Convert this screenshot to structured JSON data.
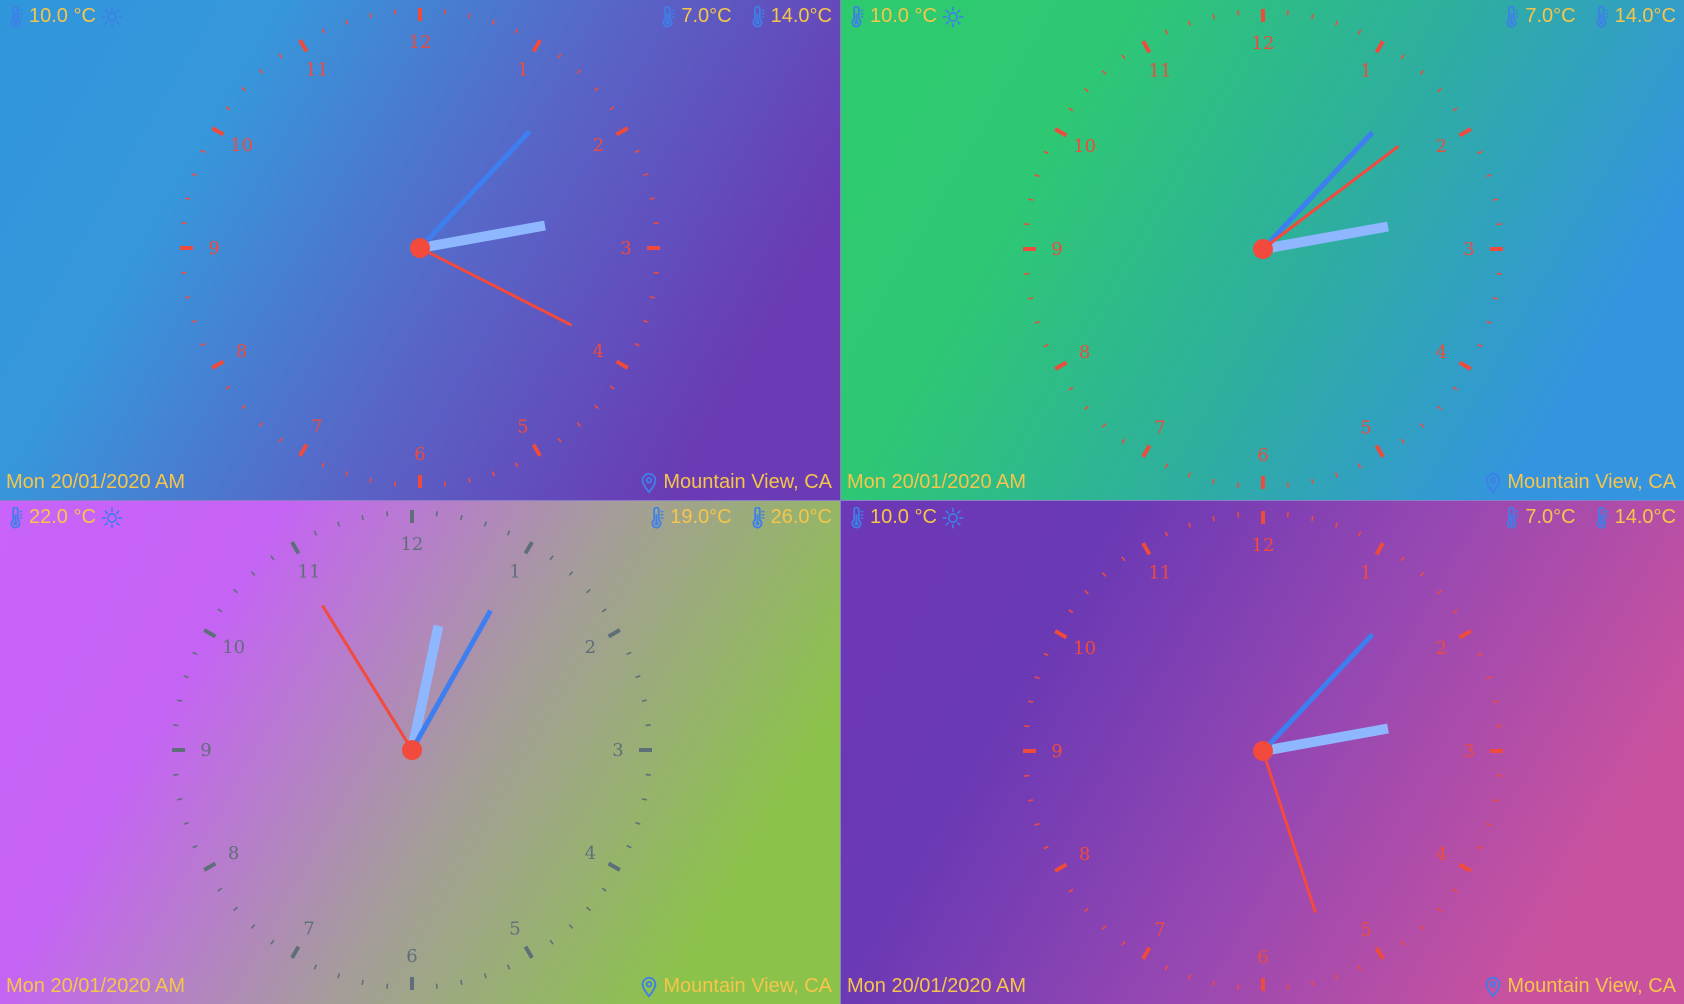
{
  "colors": {
    "text_yellow": "#f6c54a",
    "icon_blue": "#3e7fe8",
    "hand_blue": "#3d7ef0",
    "hand_light": "#8fb7ff",
    "hand_red": "#f24a3c",
    "tick_red": "#ef4b3d",
    "tick_gray": "#5e6f7a"
  },
  "panels": [
    {
      "id": "top-left",
      "gradient": [
        "#3096dc",
        "#3797db",
        "#5865c7",
        "#6a3bb4"
      ],
      "tick_color": "#ef4b3d",
      "current_temp": "10.0 °C",
      "min_temp": "7.0°C",
      "max_temp": "14.0°C",
      "date": "Mon 20/01/2020 AM",
      "location": "Mountain View, CA",
      "numerals": [
        "12",
        "1",
        "2",
        "3",
        "4",
        "5",
        "6",
        "7",
        "8",
        "9",
        "10",
        "11"
      ],
      "time": {
        "hour": 2.66,
        "minute": 7.2,
        "second": 19.5
      }
    },
    {
      "id": "top-right",
      "gradient": [
        "#2ecb6e",
        "#2ec873",
        "#2eae9f",
        "#3494e0"
      ],
      "tick_color": "#ef4b3d",
      "current_temp": "10.0 °C",
      "min_temp": "7.0°C",
      "max_temp": "14.0°C",
      "date": "Mon 20/01/2020 AM",
      "location": "Mountain View, CA",
      "numerals": [
        "12",
        "1",
        "2",
        "3",
        "4",
        "5",
        "6",
        "7",
        "8",
        "9",
        "10",
        "11"
      ],
      "time": {
        "hour": 2.66,
        "minute": 7.2,
        "second": 8.8
      }
    },
    {
      "id": "bottom-left",
      "gradient": [
        "#c963fb",
        "#c563f5",
        "#a59d9a",
        "#8bc34a"
      ],
      "tick_color": "#5e6f7a",
      "current_temp": "22.0 °C",
      "min_temp": "19.0°C",
      "max_temp": "26.0°C",
      "date": "Mon 20/01/2020 AM",
      "location": "Mountain View, CA",
      "numerals": [
        "12",
        "1",
        "2",
        "3",
        "4",
        "5",
        "6",
        "7",
        "8",
        "9",
        "10",
        "11"
      ],
      "time": {
        "hour": 0.4,
        "minute": 4.9,
        "second": 54.7
      }
    },
    {
      "id": "bottom-right",
      "gradient": [
        "#6d38b6",
        "#6a39b4",
        "#9848b2",
        "#c9529f"
      ],
      "tick_color": "#ef4b3d",
      "current_temp": "10.0 °C",
      "min_temp": "7.0°C",
      "max_temp": "14.0°C",
      "date": "Mon 20/01/2020 AM",
      "location": "Mountain View, CA",
      "numerals": [
        "12",
        "1",
        "2",
        "3",
        "4",
        "5",
        "6",
        "7",
        "8",
        "9",
        "10",
        "11"
      ],
      "time": {
        "hour": 2.66,
        "minute": 7.2,
        "second": 27.0
      }
    }
  ]
}
